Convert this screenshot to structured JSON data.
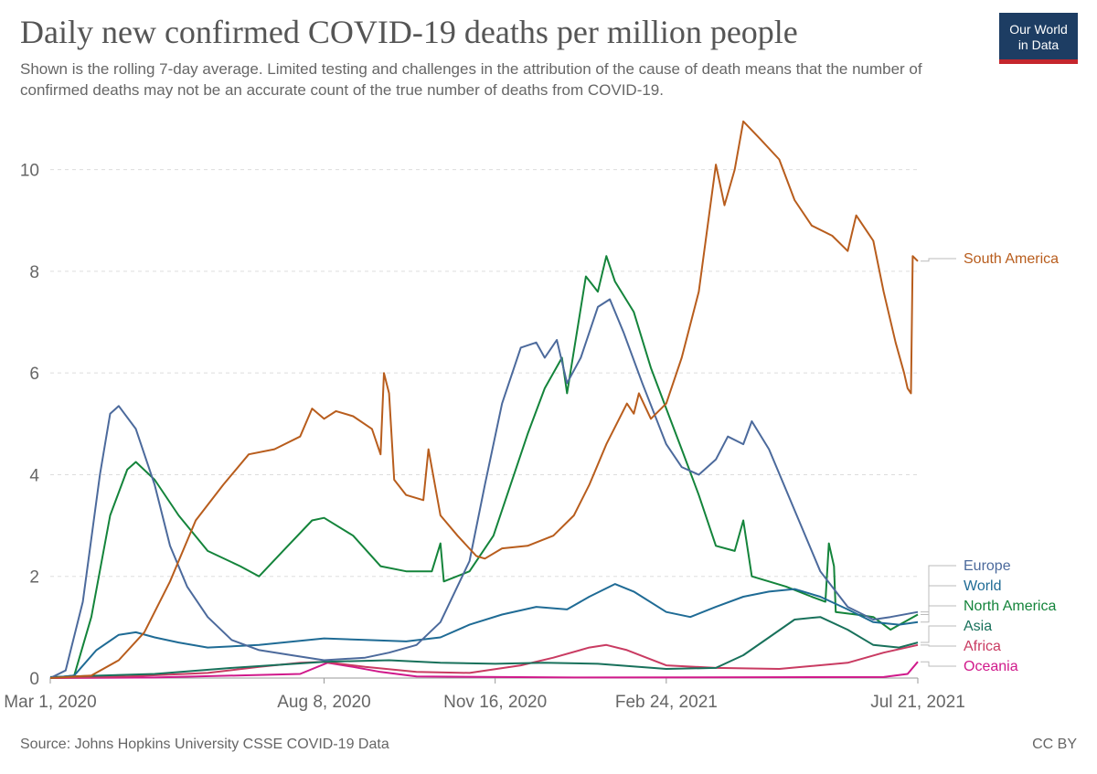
{
  "header": {
    "title": "Daily new confirmed COVID-19 deaths per million people",
    "subtitle": "Shown is the rolling 7-day average. Limited testing and challenges in the attribution of the cause of death means that the number of confirmed deaths may not be an accurate count of the true number of deaths from COVID-19.",
    "logo_line1": "Our World",
    "logo_line2": "in Data"
  },
  "footer": {
    "source": "Source: Johns Hopkins University CSSE COVID-19 Data",
    "license": "CC BY"
  },
  "colors": {
    "logo_bg": "#1d3d63",
    "logo_bar": "#c5262d",
    "grid": "#dddddd"
  },
  "chart_data": {
    "type": "line",
    "title": "Daily new confirmed COVID-19 deaths per million people",
    "xlabel": "",
    "ylabel": "",
    "x_ticks": [
      "Mar 1, 2020",
      "Aug 8, 2020",
      "Nov 16, 2020",
      "Feb 24, 2021",
      "Jul 21, 2021"
    ],
    "x_range": [
      "2020-03-01",
      "2021-07-21"
    ],
    "y_ticks": [
      0,
      2,
      4,
      6,
      8,
      10
    ],
    "ylim": [
      0,
      11
    ],
    "grid": "horizontal dashed",
    "legend": "inline labels at right",
    "series": [
      {
        "name": "South America",
        "color": "#b85d1d",
        "points": [
          [
            "2020-03-01",
            0
          ],
          [
            "2020-03-25",
            0.05
          ],
          [
            "2020-04-10",
            0.35
          ],
          [
            "2020-04-25",
            0.9
          ],
          [
            "2020-05-10",
            1.9
          ],
          [
            "2020-05-25",
            3.1
          ],
          [
            "2020-06-10",
            3.8
          ],
          [
            "2020-06-25",
            4.4
          ],
          [
            "2020-07-10",
            4.5
          ],
          [
            "2020-07-25",
            4.75
          ],
          [
            "2020-08-01",
            5.3
          ],
          [
            "2020-08-08",
            5.1
          ],
          [
            "2020-08-15",
            5.25
          ],
          [
            "2020-08-25",
            5.15
          ],
          [
            "2020-09-05",
            4.9
          ],
          [
            "2020-09-10",
            4.4
          ],
          [
            "2020-09-12",
            6.0
          ],
          [
            "2020-09-15",
            5.6
          ],
          [
            "2020-09-18",
            3.9
          ],
          [
            "2020-09-25",
            3.6
          ],
          [
            "2020-10-05",
            3.5
          ],
          [
            "2020-10-08",
            4.5
          ],
          [
            "2020-10-15",
            3.2
          ],
          [
            "2020-10-25",
            2.8
          ],
          [
            "2020-11-05",
            2.4
          ],
          [
            "2020-11-10",
            2.35
          ],
          [
            "2020-11-20",
            2.55
          ],
          [
            "2020-12-05",
            2.6
          ],
          [
            "2020-12-20",
            2.8
          ],
          [
            "2021-01-01",
            3.2
          ],
          [
            "2021-01-10",
            3.8
          ],
          [
            "2021-01-20",
            4.6
          ],
          [
            "2021-02-01",
            5.4
          ],
          [
            "2021-02-05",
            5.2
          ],
          [
            "2021-02-08",
            5.6
          ],
          [
            "2021-02-15",
            5.1
          ],
          [
            "2021-02-24",
            5.4
          ],
          [
            "2021-03-05",
            6.3
          ],
          [
            "2021-03-15",
            7.6
          ],
          [
            "2021-03-25",
            10.1
          ],
          [
            "2021-03-30",
            9.3
          ],
          [
            "2021-04-05",
            10.0
          ],
          [
            "2021-04-10",
            10.95
          ],
          [
            "2021-04-20",
            10.6
          ],
          [
            "2021-05-01",
            10.2
          ],
          [
            "2021-05-10",
            9.4
          ],
          [
            "2021-05-20",
            8.9
          ],
          [
            "2021-06-01",
            8.7
          ],
          [
            "2021-06-10",
            8.4
          ],
          [
            "2021-06-15",
            9.1
          ],
          [
            "2021-06-25",
            8.6
          ],
          [
            "2021-07-01",
            7.6
          ],
          [
            "2021-07-08",
            6.6
          ],
          [
            "2021-07-13",
            6.0
          ],
          [
            "2021-07-15",
            5.7
          ],
          [
            "2021-07-17",
            5.6
          ],
          [
            "2021-07-18",
            8.3
          ],
          [
            "2021-07-21",
            8.2
          ]
        ]
      },
      {
        "name": "Europe",
        "color": "#4c6a9c",
        "points": [
          [
            "2020-03-01",
            0
          ],
          [
            "2020-03-10",
            0.15
          ],
          [
            "2020-03-20",
            1.5
          ],
          [
            "2020-03-30",
            4.0
          ],
          [
            "2020-04-05",
            5.2
          ],
          [
            "2020-04-10",
            5.35
          ],
          [
            "2020-04-20",
            4.9
          ],
          [
            "2020-05-01",
            3.8
          ],
          [
            "2020-05-10",
            2.6
          ],
          [
            "2020-05-20",
            1.8
          ],
          [
            "2020-06-01",
            1.2
          ],
          [
            "2020-06-15",
            0.75
          ],
          [
            "2020-07-01",
            0.55
          ],
          [
            "2020-07-20",
            0.45
          ],
          [
            "2020-08-08",
            0.35
          ],
          [
            "2020-09-01",
            0.4
          ],
          [
            "2020-09-15",
            0.5
          ],
          [
            "2020-10-01",
            0.65
          ],
          [
            "2020-10-15",
            1.1
          ],
          [
            "2020-11-01",
            2.3
          ],
          [
            "2020-11-10",
            3.8
          ],
          [
            "2020-11-20",
            5.4
          ],
          [
            "2020-12-01",
            6.5
          ],
          [
            "2020-12-10",
            6.6
          ],
          [
            "2020-12-15",
            6.3
          ],
          [
            "2020-12-22",
            6.65
          ],
          [
            "2020-12-28",
            5.8
          ],
          [
            "2021-01-05",
            6.3
          ],
          [
            "2021-01-15",
            7.3
          ],
          [
            "2021-01-22",
            7.45
          ],
          [
            "2021-01-30",
            6.8
          ],
          [
            "2021-02-10",
            5.8
          ],
          [
            "2021-02-24",
            4.6
          ],
          [
            "2021-03-05",
            4.15
          ],
          [
            "2021-03-15",
            4.0
          ],
          [
            "2021-03-25",
            4.3
          ],
          [
            "2021-04-01",
            4.75
          ],
          [
            "2021-04-10",
            4.6
          ],
          [
            "2021-04-15",
            5.05
          ],
          [
            "2021-04-25",
            4.5
          ],
          [
            "2021-05-10",
            3.3
          ],
          [
            "2021-05-25",
            2.1
          ],
          [
            "2021-06-10",
            1.4
          ],
          [
            "2021-06-25",
            1.15
          ],
          [
            "2021-07-05",
            1.2
          ],
          [
            "2021-07-21",
            1.3
          ]
        ]
      },
      {
        "name": "World",
        "color": "#1f6b95",
        "points": [
          [
            "2020-03-01",
            0
          ],
          [
            "2020-03-15",
            0.05
          ],
          [
            "2020-03-28",
            0.55
          ],
          [
            "2020-04-10",
            0.85
          ],
          [
            "2020-04-20",
            0.9
          ],
          [
            "2020-05-01",
            0.8
          ],
          [
            "2020-05-15",
            0.7
          ],
          [
            "2020-06-01",
            0.6
          ],
          [
            "2020-07-01",
            0.65
          ],
          [
            "2020-08-08",
            0.78
          ],
          [
            "2020-09-01",
            0.75
          ],
          [
            "2020-09-25",
            0.72
          ],
          [
            "2020-10-15",
            0.8
          ],
          [
            "2020-11-01",
            1.05
          ],
          [
            "2020-11-20",
            1.25
          ],
          [
            "2020-12-10",
            1.4
          ],
          [
            "2020-12-28",
            1.35
          ],
          [
            "2021-01-10",
            1.6
          ],
          [
            "2021-01-25",
            1.85
          ],
          [
            "2021-02-05",
            1.7
          ],
          [
            "2021-02-24",
            1.3
          ],
          [
            "2021-03-10",
            1.2
          ],
          [
            "2021-03-25",
            1.4
          ],
          [
            "2021-04-10",
            1.6
          ],
          [
            "2021-04-25",
            1.7
          ],
          [
            "2021-05-10",
            1.75
          ],
          [
            "2021-05-25",
            1.6
          ],
          [
            "2021-06-10",
            1.35
          ],
          [
            "2021-06-25",
            1.1
          ],
          [
            "2021-07-10",
            1.05
          ],
          [
            "2021-07-21",
            1.1
          ]
        ]
      },
      {
        "name": "North America",
        "color": "#14843b",
        "points": [
          [
            "2020-03-01",
            0
          ],
          [
            "2020-03-15",
            0.05
          ],
          [
            "2020-03-25",
            1.2
          ],
          [
            "2020-04-05",
            3.2
          ],
          [
            "2020-04-15",
            4.1
          ],
          [
            "2020-04-20",
            4.25
          ],
          [
            "2020-05-01",
            3.9
          ],
          [
            "2020-05-15",
            3.2
          ],
          [
            "2020-06-01",
            2.5
          ],
          [
            "2020-06-20",
            2.2
          ],
          [
            "2020-07-01",
            2.0
          ],
          [
            "2020-07-15",
            2.5
          ],
          [
            "2020-08-01",
            3.1
          ],
          [
            "2020-08-08",
            3.15
          ],
          [
            "2020-08-25",
            2.8
          ],
          [
            "2020-09-10",
            2.2
          ],
          [
            "2020-09-25",
            2.1
          ],
          [
            "2020-10-10",
            2.1
          ],
          [
            "2020-10-15",
            2.65
          ],
          [
            "2020-10-17",
            1.9
          ],
          [
            "2020-11-01",
            2.1
          ],
          [
            "2020-11-15",
            2.8
          ],
          [
            "2020-11-25",
            3.8
          ],
          [
            "2020-12-05",
            4.8
          ],
          [
            "2020-12-15",
            5.7
          ],
          [
            "2020-12-25",
            6.3
          ],
          [
            "2020-12-28",
            5.6
          ],
          [
            "2021-01-08",
            7.9
          ],
          [
            "2021-01-15",
            7.6
          ],
          [
            "2021-01-20",
            8.3
          ],
          [
            "2021-01-25",
            7.8
          ],
          [
            "2021-02-05",
            7.2
          ],
          [
            "2021-02-15",
            6.1
          ],
          [
            "2021-02-24",
            5.3
          ],
          [
            "2021-03-05",
            4.5
          ],
          [
            "2021-03-15",
            3.6
          ],
          [
            "2021-03-25",
            2.6
          ],
          [
            "2021-04-05",
            2.5
          ],
          [
            "2021-04-10",
            3.1
          ],
          [
            "2021-04-15",
            2.0
          ],
          [
            "2021-04-25",
            1.9
          ],
          [
            "2021-05-05",
            1.8
          ],
          [
            "2021-05-20",
            1.6
          ],
          [
            "2021-05-28",
            1.5
          ],
          [
            "2021-05-30",
            2.65
          ],
          [
            "2021-06-02",
            2.2
          ],
          [
            "2021-06-03",
            1.3
          ],
          [
            "2021-06-15",
            1.25
          ],
          [
            "2021-06-25",
            1.2
          ],
          [
            "2021-07-05",
            0.95
          ],
          [
            "2021-07-21",
            1.25
          ]
        ]
      },
      {
        "name": "Asia",
        "color": "#18715b",
        "points": [
          [
            "2020-03-01",
            0.02
          ],
          [
            "2020-05-01",
            0.08
          ],
          [
            "2020-06-15",
            0.2
          ],
          [
            "2020-08-08",
            0.32
          ],
          [
            "2020-09-15",
            0.35
          ],
          [
            "2020-10-15",
            0.3
          ],
          [
            "2020-11-16",
            0.28
          ],
          [
            "2020-12-15",
            0.3
          ],
          [
            "2021-01-15",
            0.28
          ],
          [
            "2021-02-24",
            0.18
          ],
          [
            "2021-03-25",
            0.2
          ],
          [
            "2021-04-10",
            0.45
          ],
          [
            "2021-04-25",
            0.8
          ],
          [
            "2021-05-10",
            1.15
          ],
          [
            "2021-05-25",
            1.2
          ],
          [
            "2021-06-10",
            0.95
          ],
          [
            "2021-06-25",
            0.65
          ],
          [
            "2021-07-10",
            0.6
          ],
          [
            "2021-07-21",
            0.7
          ]
        ]
      },
      {
        "name": "Africa",
        "color": "#c93b62",
        "points": [
          [
            "2020-03-01",
            0
          ],
          [
            "2020-04-15",
            0.03
          ],
          [
            "2020-06-01",
            0.1
          ],
          [
            "2020-07-01",
            0.22
          ],
          [
            "2020-07-25",
            0.3
          ],
          [
            "2020-08-08",
            0.32
          ],
          [
            "2020-09-01",
            0.22
          ],
          [
            "2020-10-01",
            0.12
          ],
          [
            "2020-11-01",
            0.1
          ],
          [
            "2020-12-01",
            0.25
          ],
          [
            "2020-12-20",
            0.4
          ],
          [
            "2021-01-10",
            0.6
          ],
          [
            "2021-01-20",
            0.65
          ],
          [
            "2021-02-01",
            0.55
          ],
          [
            "2021-02-24",
            0.25
          ],
          [
            "2021-03-25",
            0.2
          ],
          [
            "2021-05-01",
            0.18
          ],
          [
            "2021-06-10",
            0.3
          ],
          [
            "2021-07-01",
            0.5
          ],
          [
            "2021-07-21",
            0.65
          ]
        ]
      },
      {
        "name": "Oceania",
        "color": "#d0198b",
        "points": [
          [
            "2020-03-01",
            0
          ],
          [
            "2020-05-01",
            0.01
          ],
          [
            "2020-07-25",
            0.08
          ],
          [
            "2020-08-10",
            0.3
          ],
          [
            "2020-08-25",
            0.22
          ],
          [
            "2020-09-10",
            0.12
          ],
          [
            "2020-10-01",
            0.03
          ],
          [
            "2021-01-01",
            0.01
          ],
          [
            "2021-07-01",
            0.02
          ],
          [
            "2021-07-15",
            0.08
          ],
          [
            "2021-07-21",
            0.32
          ]
        ]
      }
    ]
  }
}
